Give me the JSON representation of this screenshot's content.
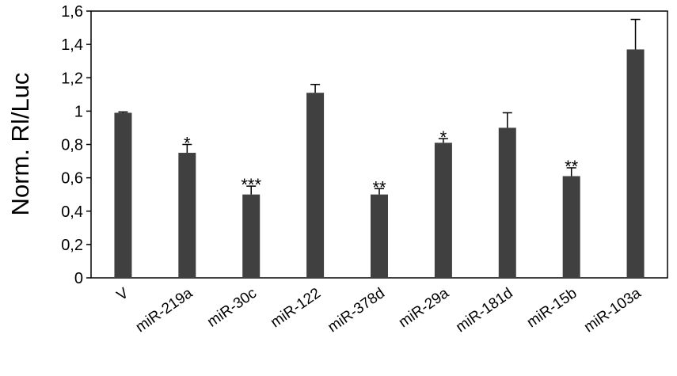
{
  "chart_data": {
    "type": "bar",
    "title": "",
    "xlabel": "",
    "ylabel": "Norm. Rl/Luc",
    "ylim": [
      0,
      1.6
    ],
    "yticks": [
      "0",
      "0,2",
      "0,4",
      "0,6",
      "0,8",
      "1",
      "1,2",
      "1,4",
      "1,6"
    ],
    "categories": [
      "V",
      "miR-219a",
      "miR-30c",
      "miR-122",
      "miR-378d",
      "miR-29a",
      "miR-181d",
      "miR-15b",
      "miR-103a"
    ],
    "values": [
      0.99,
      0.75,
      0.5,
      1.11,
      0.5,
      0.81,
      0.9,
      0.61,
      1.37
    ],
    "errors": [
      0.005,
      0.05,
      0.05,
      0.05,
      0.035,
      0.025,
      0.09,
      0.05,
      0.18
    ],
    "significance": [
      "",
      "*",
      "***",
      "",
      "**",
      "*",
      "",
      "**",
      ""
    ],
    "bar_color": "#404040",
    "grid": false,
    "legend": "none"
  }
}
